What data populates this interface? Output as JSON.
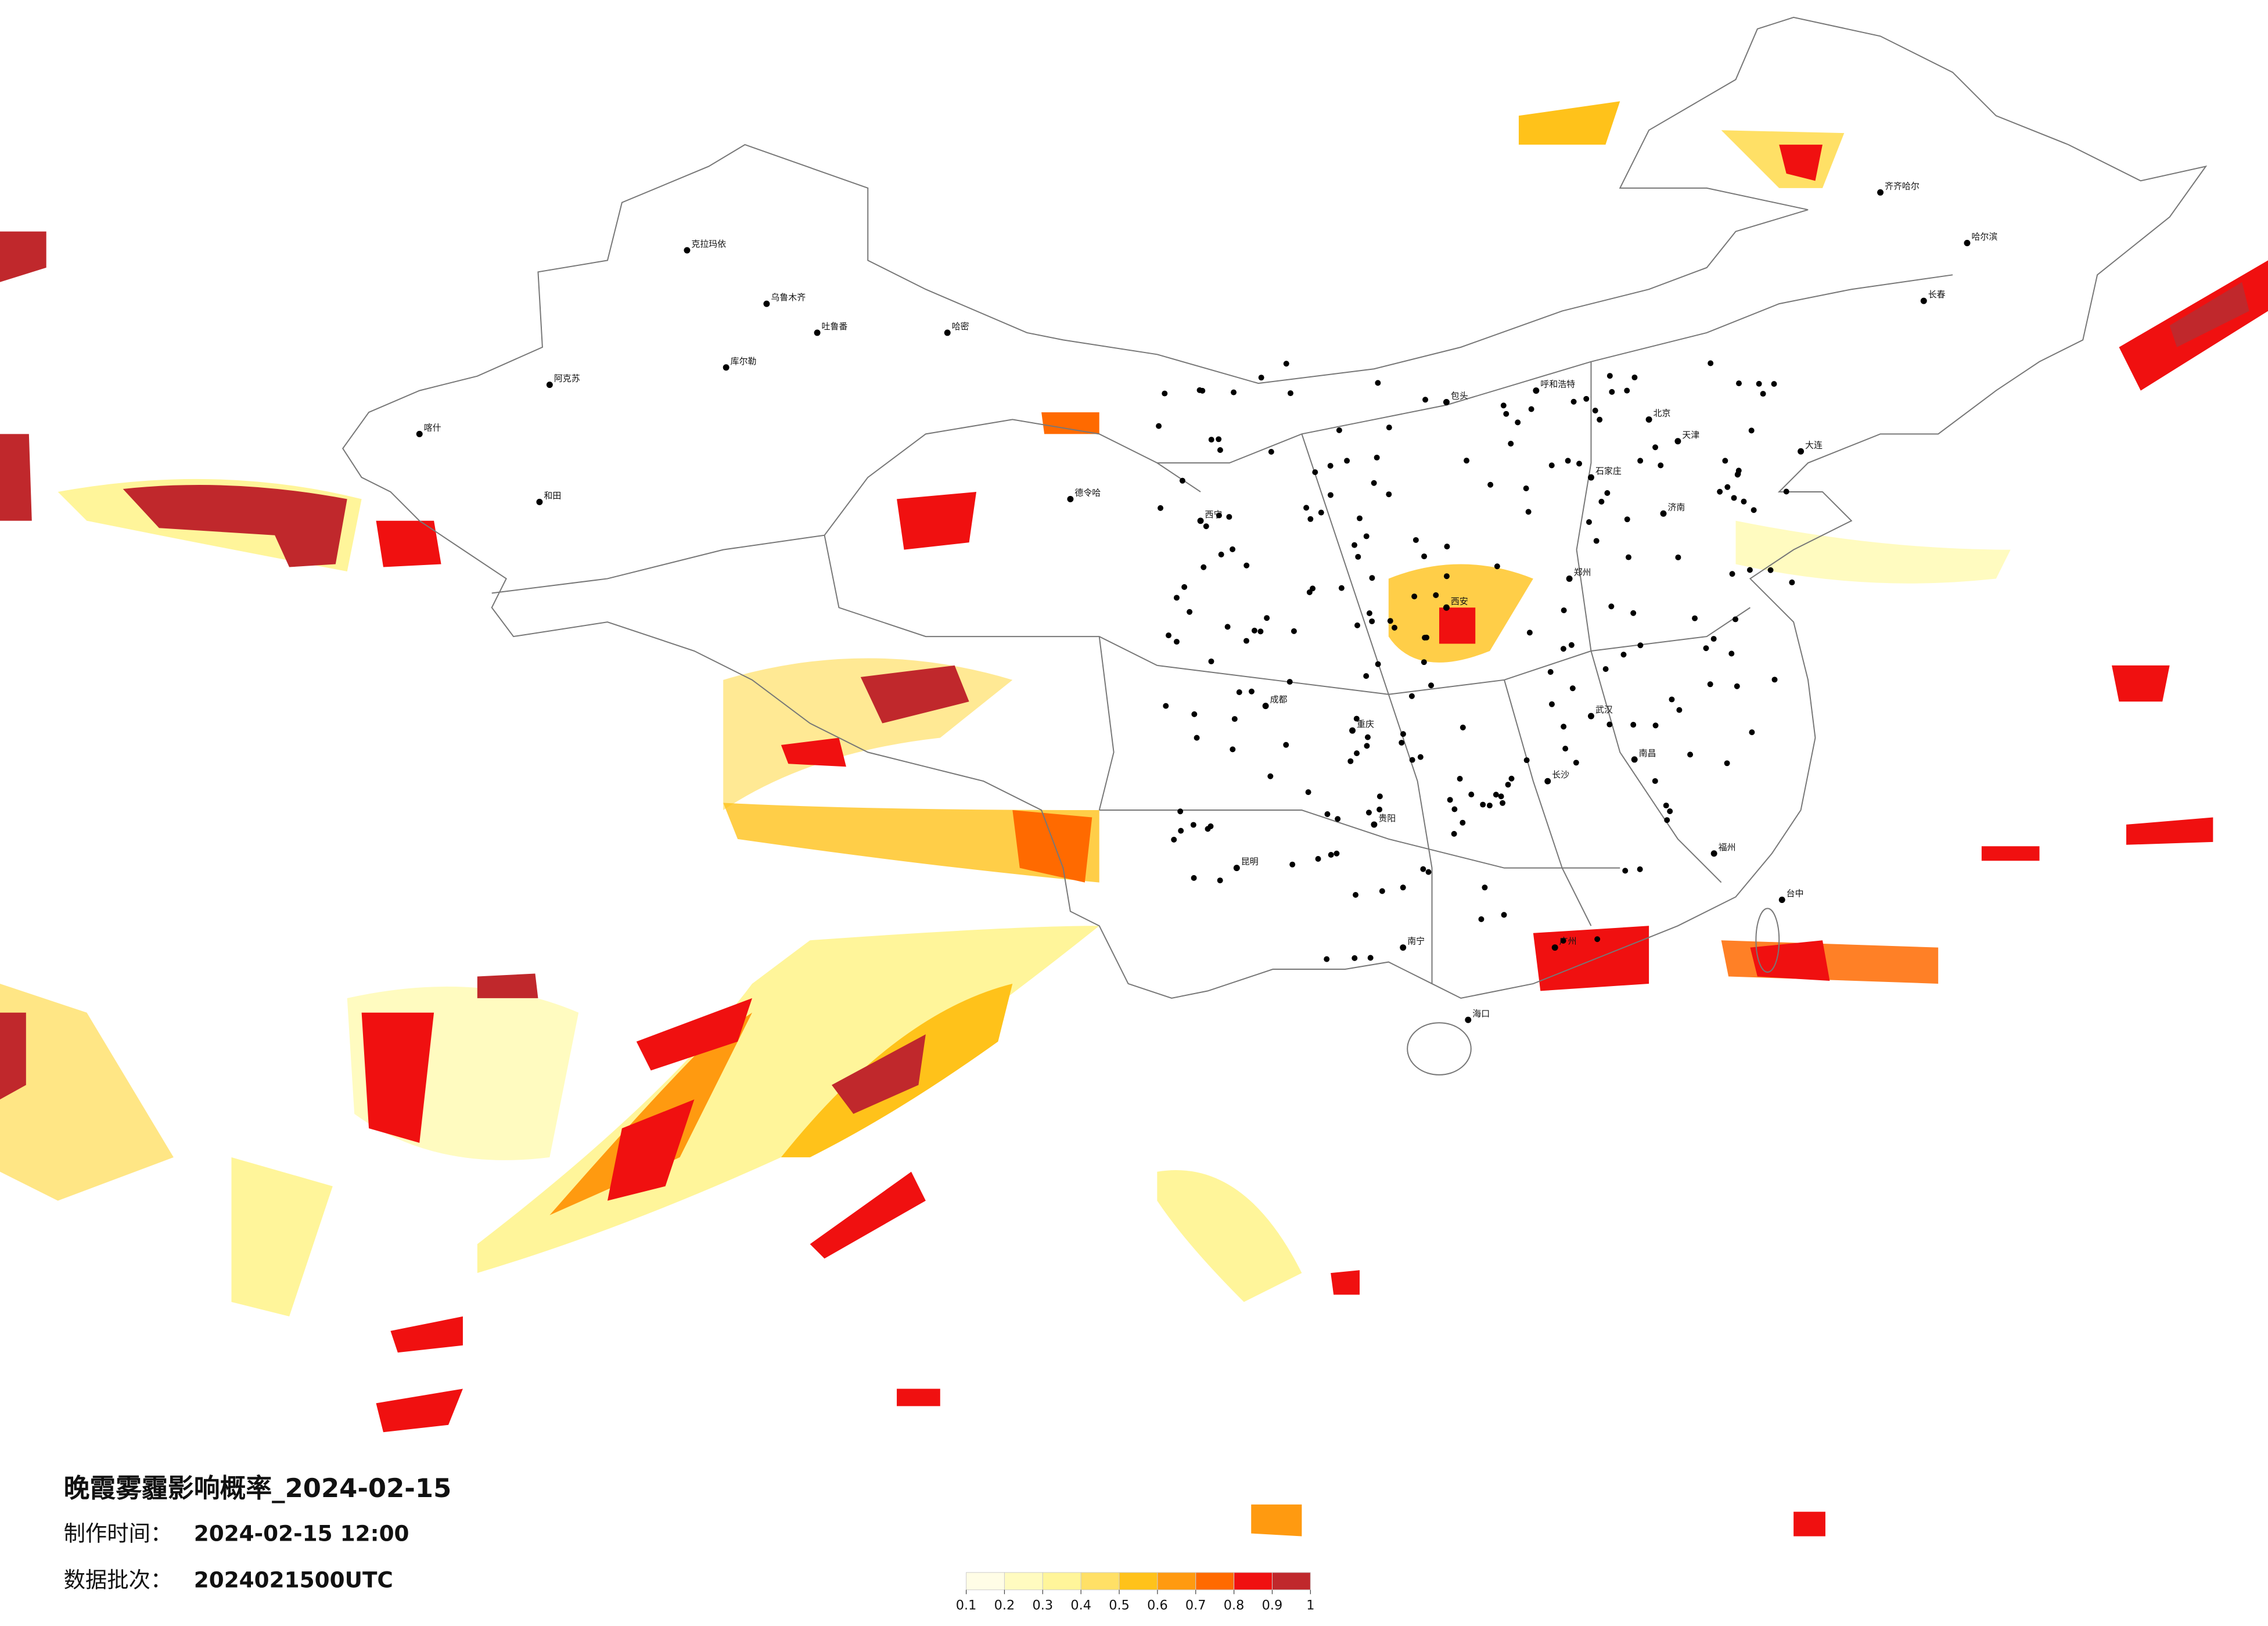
{
  "title": "晚霞雾霾影响概率_2024-02-15",
  "made_label": "制作时间：",
  "made_time": "2024-02-15 12:00",
  "batch_label": "数据批次：",
  "batch": "2024021500UTC",
  "colorbar": {
    "ticks": [
      0.1,
      0.2,
      0.3,
      0.4,
      0.5,
      0.6,
      0.7,
      0.8,
      0.9,
      1
    ],
    "colors": [
      "#fffde6",
      "#fffbc0",
      "#fff59a",
      "#ffe066",
      "#ffc21a",
      "#ff9a10",
      "#ff6a00",
      "#f01010",
      "#c0282c"
    ]
  },
  "cities": [
    "克拉玛依",
    "乌鲁木齐",
    "吐鲁番",
    "哈密",
    "库尔勒",
    "阿克苏",
    "喀什",
    "和田",
    "德令哈",
    "西宁",
    "包头",
    "呼和浩特",
    "北京",
    "天津",
    "石家庄",
    "济南",
    "郑州",
    "西安",
    "武汉",
    "长沙",
    "南昌",
    "福州",
    "广州",
    "南宁",
    "昆明",
    "贵阳",
    "重庆",
    "成都",
    "哈尔滨",
    "长春",
    "齐齐哈尔",
    "海口",
    "台中",
    "大连"
  ]
}
